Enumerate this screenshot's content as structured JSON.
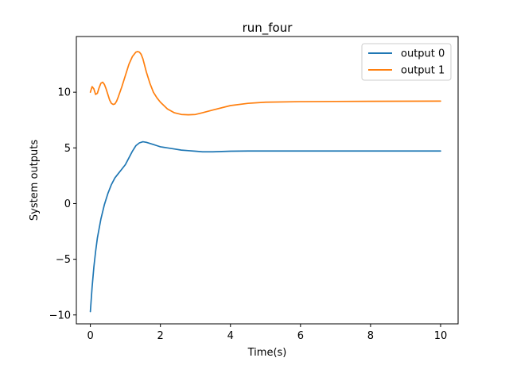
{
  "chart_data": {
    "type": "line",
    "title": "run_four",
    "xlabel": "Time(s)",
    "ylabel": "System outputs",
    "xlim": [
      -0.4,
      10.5
    ],
    "ylim": [
      -10.8,
      15.0
    ],
    "xticks": [
      0,
      2,
      4,
      6,
      8,
      10
    ],
    "yticks": [
      -10,
      -5,
      0,
      5,
      10
    ],
    "xtick_labels": [
      "0",
      "2",
      "4",
      "6",
      "8",
      "10"
    ],
    "ytick_labels": [
      "−10",
      "−5",
      "0",
      "5",
      "10"
    ],
    "grid": false,
    "legend_position": "top-right",
    "series": [
      {
        "name": "output 0",
        "color": "#1f77b4",
        "x": [
          0,
          0.05,
          0.1,
          0.15,
          0.2,
          0.3,
          0.4,
          0.5,
          0.6,
          0.7,
          0.8,
          0.9,
          1.0,
          1.1,
          1.2,
          1.3,
          1.4,
          1.5,
          1.6,
          1.7,
          1.8,
          1.9,
          2.0,
          2.1,
          2.2,
          2.4,
          2.6,
          2.8,
          3.0,
          3.2,
          3.5,
          4.0,
          4.5,
          5.0,
          6.0,
          7.0,
          8.0,
          9.0,
          10.0
        ],
        "y": [
          -9.7,
          -7.5,
          -5.7,
          -4.3,
          -3.1,
          -1.4,
          -0.1,
          0.9,
          1.7,
          2.3,
          2.7,
          3.1,
          3.5,
          4.1,
          4.7,
          5.2,
          5.45,
          5.55,
          5.5,
          5.4,
          5.3,
          5.2,
          5.1,
          5.05,
          5.0,
          4.9,
          4.8,
          4.75,
          4.7,
          4.65,
          4.65,
          4.7,
          4.72,
          4.72,
          4.72,
          4.72,
          4.72,
          4.72,
          4.72
        ]
      },
      {
        "name": "output 1",
        "color": "#ff7f0e",
        "x": [
          0,
          0.05,
          0.1,
          0.15,
          0.2,
          0.25,
          0.3,
          0.35,
          0.4,
          0.45,
          0.5,
          0.55,
          0.6,
          0.65,
          0.7,
          0.75,
          0.8,
          0.9,
          1.0,
          1.1,
          1.2,
          1.3,
          1.35,
          1.4,
          1.45,
          1.5,
          1.6,
          1.7,
          1.8,
          1.9,
          2.0,
          2.2,
          2.4,
          2.6,
          2.8,
          3.0,
          3.2,
          3.5,
          4.0,
          4.5,
          5.0,
          6.0,
          7.0,
          8.0,
          9.0,
          10.0
        ],
        "y": [
          10.0,
          10.5,
          10.3,
          9.8,
          9.9,
          10.4,
          10.8,
          10.9,
          10.7,
          10.3,
          9.8,
          9.3,
          9.0,
          8.9,
          8.95,
          9.2,
          9.6,
          10.5,
          11.5,
          12.5,
          13.2,
          13.6,
          13.65,
          13.6,
          13.4,
          13.0,
          11.8,
          10.8,
          10.0,
          9.5,
          9.1,
          8.5,
          8.15,
          8.0,
          7.97,
          8.0,
          8.15,
          8.4,
          8.8,
          9.0,
          9.1,
          9.15,
          9.17,
          9.18,
          9.19,
          9.2
        ]
      }
    ]
  }
}
